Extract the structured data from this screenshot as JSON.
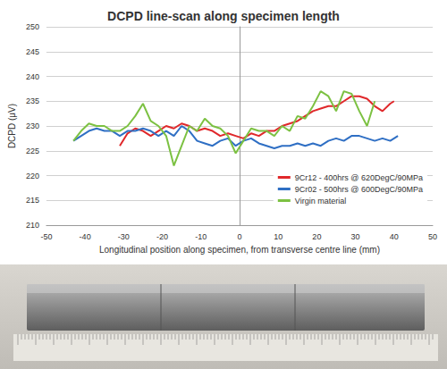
{
  "chart_data": {
    "type": "line",
    "title": "DCPD line-scan along specimen length",
    "x_label": "Longitudinal position along specimen, from transverse centre line (mm)",
    "y_label": "DCPD (μV)",
    "xlim": [
      -50,
      50
    ],
    "xticks": [
      -50,
      -40,
      -30,
      -20,
      -10,
      0,
      10,
      20,
      30,
      40,
      50
    ],
    "ylim": [
      210,
      250
    ],
    "yticks": [
      210,
      215,
      220,
      225,
      230,
      235,
      240,
      245,
      250
    ],
    "grid": true,
    "legend": "lower right",
    "series": [
      {
        "name": "9Cr12 - 400hrs @ 620DegC/90MPa",
        "color": "#e0282b",
        "x": [
          -31,
          -29,
          -27,
          -25,
          -23,
          -21,
          -19,
          -17,
          -15,
          -13,
          -11,
          -9,
          -7,
          -5,
          -3,
          -1,
          1,
          3,
          5,
          7,
          9,
          11,
          13,
          15,
          17,
          19,
          21,
          23,
          25,
          27,
          29,
          31,
          33,
          35,
          37,
          39,
          40
        ],
        "values": [
          226,
          228.5,
          229.5,
          229,
          228,
          229,
          230,
          229.5,
          230.5,
          230,
          229,
          229.5,
          229,
          228,
          228.5,
          228,
          227.5,
          228.5,
          228,
          229,
          229,
          230,
          230.5,
          231,
          232,
          233,
          233.5,
          234,
          234,
          235,
          236,
          236,
          235.5,
          234,
          233,
          234.5,
          235
        ]
      },
      {
        "name": "9Cr02 - 500hrs @ 600DegC/90MPa",
        "color": "#2f6fc4",
        "x": [
          -43,
          -41,
          -39,
          -37,
          -35,
          -33,
          -31,
          -29,
          -27,
          -25,
          -23,
          -21,
          -19,
          -17,
          -15,
          -13,
          -11,
          -9,
          -7,
          -5,
          -3,
          -1,
          1,
          3,
          5,
          7,
          9,
          11,
          13,
          15,
          17,
          19,
          21,
          23,
          25,
          27,
          29,
          31,
          33,
          35,
          37,
          39,
          41
        ],
        "values": [
          227,
          228,
          229,
          229.5,
          229,
          229,
          228,
          229,
          229,
          229.5,
          229,
          228,
          229,
          228,
          230,
          229,
          227,
          226.5,
          226,
          227,
          227.5,
          226,
          227,
          227.5,
          226.5,
          226,
          225.5,
          226,
          226,
          226.5,
          226,
          226.5,
          226,
          227,
          227.5,
          227,
          228,
          228,
          227.5,
          227,
          227.5,
          227,
          228
        ]
      },
      {
        "name": "Virgin material",
        "color": "#7cc142",
        "x": [
          -43,
          -41,
          -39,
          -37,
          -35,
          -33,
          -31,
          -29,
          -27,
          -25,
          -23,
          -21,
          -19,
          -17,
          -15,
          -13,
          -11,
          -9,
          -7,
          -5,
          -3,
          -1,
          1,
          3,
          5,
          7,
          9,
          11,
          13,
          15,
          17,
          19,
          21,
          23,
          25,
          27,
          29,
          31,
          33,
          35
        ],
        "values": [
          227,
          229,
          230.5,
          230,
          230,
          229,
          229,
          230,
          232,
          234.5,
          231,
          230,
          228,
          222,
          226,
          230,
          229,
          231.5,
          230,
          229.5,
          228,
          224.5,
          227,
          229.5,
          229,
          229,
          228,
          230,
          229,
          232,
          231.5,
          234,
          237,
          236,
          233,
          237,
          236.5,
          233,
          230,
          235
        ]
      }
    ]
  }
}
